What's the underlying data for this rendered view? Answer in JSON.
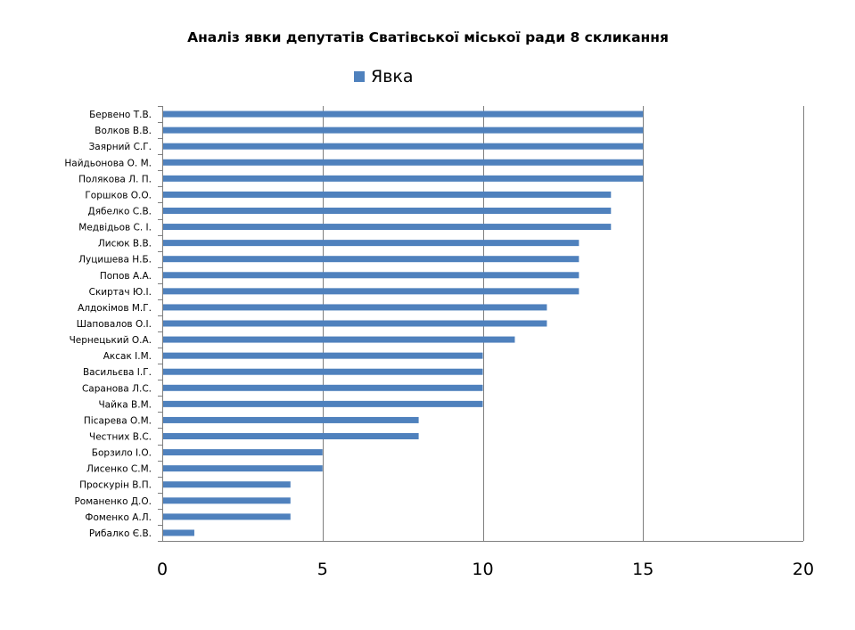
{
  "chart_data": {
    "type": "bar",
    "orientation": "horizontal",
    "title": "Аналіз явки депутатів Сватівської міської ради 8 скликання",
    "legend_position": "top",
    "series": [
      {
        "name": "Явка",
        "color": "#4f81bd",
        "values": [
          15,
          15,
          15,
          15,
          15,
          14,
          14,
          14,
          13,
          13,
          13,
          13,
          12,
          12,
          11,
          10,
          10,
          10,
          10,
          8,
          8,
          5,
          5,
          4,
          4,
          4,
          1
        ]
      }
    ],
    "categories": [
      "Бервено  Т.В.",
      "Волков В.В.",
      "Заярний С.Г.",
      "Найдьонова  О. М.",
      "Полякова Л. П.",
      "Горшков О.О.",
      "Дябелко  С.В.",
      "Медвідьов  С. І.",
      "Лисюк В.В.",
      "Луцишева  Н.Б.",
      "Попов А.А.",
      "Скиртач Ю.І.",
      "Алдокімов М.Г.",
      "Шаповалов О.І.",
      "Чернецький  О.А.",
      "Аксак І.М.",
      "Васильєва І.Г.",
      "Саранова Л.С.",
      "Чайка В.М.",
      "Пісарева О.М.",
      "Честних В.С.",
      "Борзило І.О.",
      "Лисенко С.М.",
      "Проскурін В.П.",
      "Романенко Д.О.",
      "Фоменко  А.Л.",
      "Рибалко Є.В."
    ],
    "xlim": [
      0,
      20
    ],
    "xticks": [
      0,
      5,
      10,
      15,
      20
    ],
    "xtick_labels": [
      "0",
      "5",
      "10",
      "15",
      "20"
    ],
    "grid": "vertical"
  }
}
